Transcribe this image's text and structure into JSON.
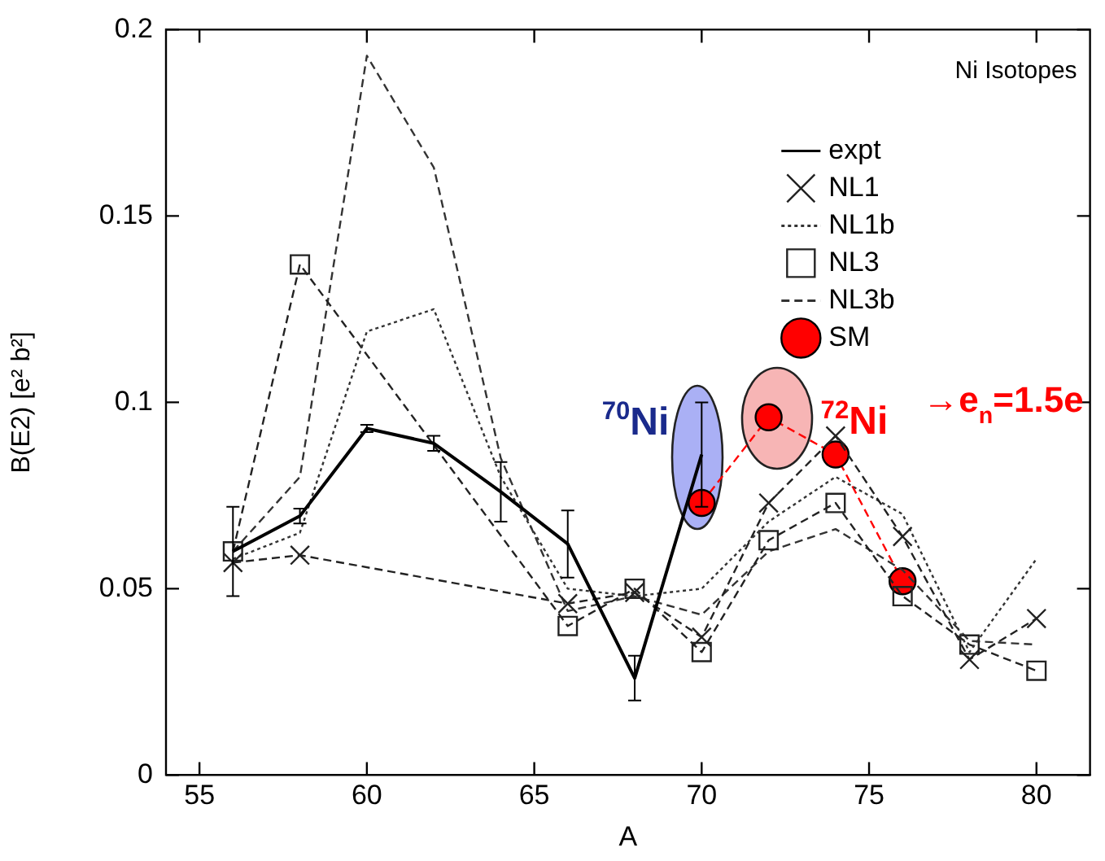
{
  "chart_data": {
    "type": "line",
    "title": "Ni Isotopes",
    "xlabel": "A",
    "ylabel": "B(E2) [e² b²]",
    "x": [
      56,
      58,
      60,
      62,
      64,
      66,
      68,
      70,
      72,
      74,
      76,
      78,
      80
    ],
    "xlim": [
      54,
      81.6
    ],
    "xticks": [
      55,
      60,
      65,
      70,
      75,
      80
    ],
    "ylim": [
      0,
      0.2
    ],
    "yticks": [
      0,
      0.05,
      0.1,
      0.15,
      0.2
    ],
    "grid": false,
    "legend": "top right",
    "series": [
      {
        "name": "expt",
        "color": "#000000",
        "x": [
          56,
          58,
          60,
          62,
          64,
          66,
          68,
          70
        ],
        "values": [
          0.06,
          0.0695,
          0.093,
          0.089,
          0.076,
          0.062,
          0.026,
          0.086
        ],
        "errors": [
          0.012,
          0.002,
          0.001,
          0.002,
          0.008,
          0.009,
          0.006,
          0.014
        ],
        "marker": "none",
        "line_style": "solid"
      },
      {
        "name": "NL1",
        "color": "#222222",
        "x": [
          56,
          58,
          66,
          68,
          70,
          72,
          74,
          76,
          78,
          80
        ],
        "values": [
          0.057,
          0.059,
          0.046,
          0.049,
          0.037,
          0.073,
          0.091,
          0.064,
          0.031,
          0.042
        ],
        "marker": "cross",
        "line_style": "dashed"
      },
      {
        "name": "NL1b",
        "color": "#333333",
        "values": [
          0.058,
          0.065,
          0.119,
          0.125,
          0.08,
          0.05,
          0.048,
          0.05,
          0.068,
          0.08,
          0.07,
          0.033,
          0.058
        ],
        "marker": "none",
        "line_style": "dotted"
      },
      {
        "name": "NL3",
        "color": "#222222",
        "x": [
          56,
          58,
          66,
          68,
          70,
          72,
          74,
          76,
          78,
          80
        ],
        "values": [
          0.06,
          0.137,
          0.04,
          0.05,
          0.033,
          0.063,
          0.073,
          0.048,
          0.035,
          0.028
        ],
        "marker": "square",
        "line_style": "dashed"
      },
      {
        "name": "NL3b",
        "color": "#333333",
        "values": [
          0.06,
          0.08,
          0.193,
          0.163,
          0.085,
          0.044,
          0.048,
          0.043,
          0.06,
          0.066,
          0.055,
          0.036,
          0.035
        ],
        "marker": "none",
        "line_style": "dashed"
      },
      {
        "name": "SM",
        "color": "#ff0000",
        "x": [
          70,
          72,
          74,
          76
        ],
        "values": [
          0.073,
          0.096,
          0.086,
          0.052
        ],
        "marker": "circle",
        "line_style": "dashed"
      }
    ],
    "annotations": [
      {
        "text": "$^{70}$Ni",
        "x": 70,
        "y": 0.073
      },
      {
        "text": "$^{72}$Ni",
        "x": 72,
        "y": 0.096
      },
      "→e$_{n}$=1.5e"
    ]
  }
}
